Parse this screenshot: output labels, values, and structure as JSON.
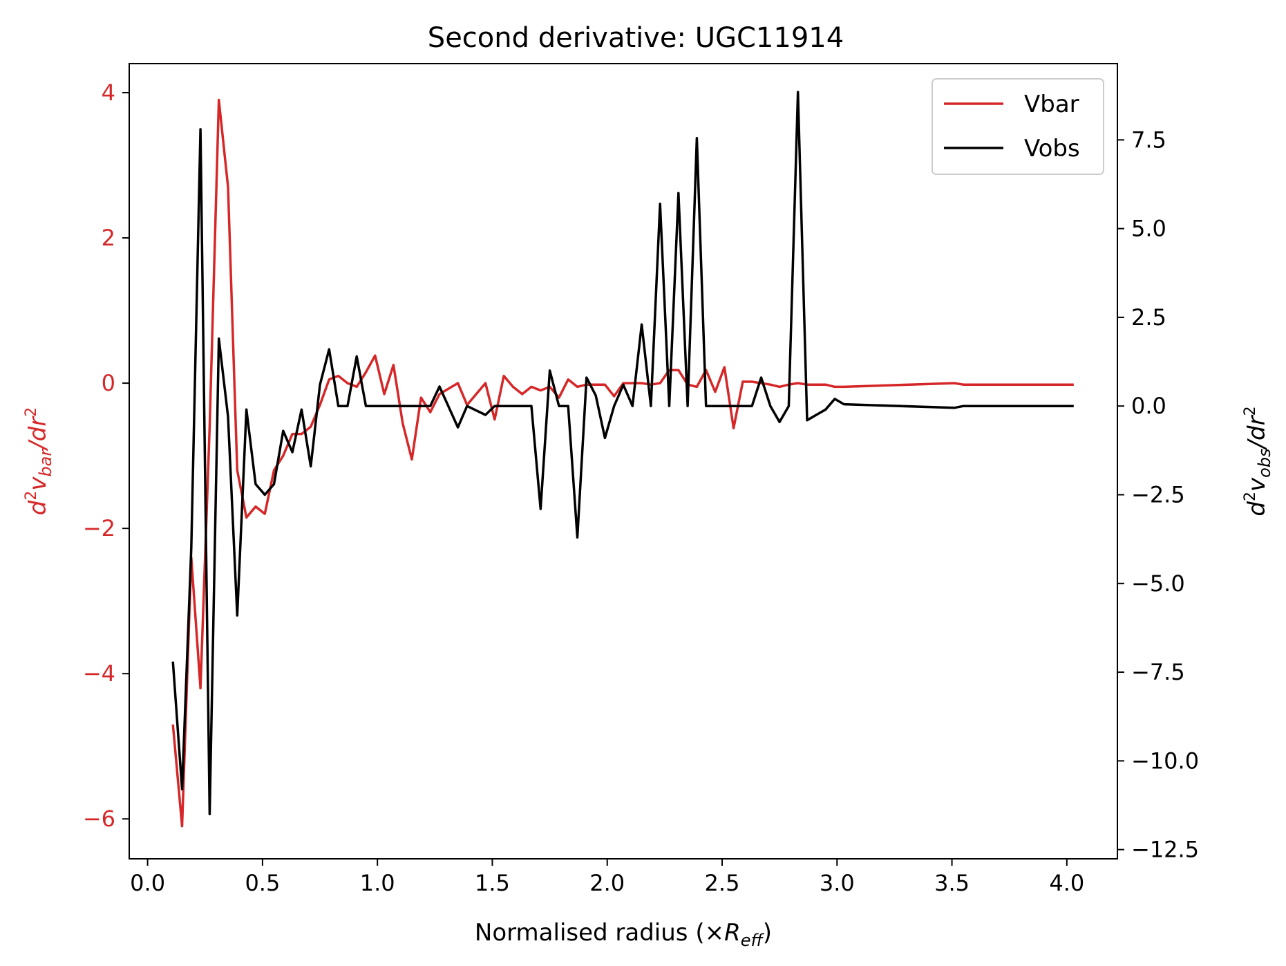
{
  "chart_data": {
    "type": "line",
    "title": "Second derivative: UGC11914",
    "xlabel": "Normalised radius (×R_eff)",
    "ylabel_left": "d²v_bar/dr²",
    "ylabel_right": "d²v_obs/dr²",
    "xlim": [
      -0.08,
      4.22
    ],
    "ylim_left": [
      -6.55,
      4.4
    ],
    "ylim_right": [
      -12.76,
      9.65
    ],
    "x_ticks": [
      "0.0",
      "0.5",
      "1.0",
      "1.5",
      "2.0",
      "2.5",
      "3.0",
      "3.5",
      "4.0"
    ],
    "y_ticks_left": [
      "−6",
      "−4",
      "−2",
      "0",
      "2",
      "4"
    ],
    "y_ticks_right": [
      "−12.5",
      "−10.0",
      "−7.5",
      "−5.0",
      "−2.5",
      "0.0",
      "2.5",
      "5.0",
      "7.5"
    ],
    "legend_position": "top-right",
    "grid": false,
    "colors": {
      "vbar": "#d62728",
      "vobs": "#000000",
      "left_axis": "#d62728",
      "right_axis": "#000000"
    },
    "series": [
      {
        "name": "Vbar",
        "axis": "left",
        "x": [
          0.11,
          0.15,
          0.19,
          0.23,
          0.27,
          0.31,
          0.35,
          0.39,
          0.43,
          0.47,
          0.51,
          0.55,
          0.59,
          0.63,
          0.67,
          0.71,
          0.75,
          0.79,
          0.83,
          0.87,
          0.91,
          0.95,
          0.99,
          1.03,
          1.07,
          1.11,
          1.15,
          1.19,
          1.23,
          1.27,
          1.35,
          1.39,
          1.47,
          1.51,
          1.55,
          1.59,
          1.63,
          1.67,
          1.71,
          1.75,
          1.79,
          1.83,
          1.87,
          1.91,
          1.95,
          1.99,
          2.03,
          2.07,
          2.11,
          2.15,
          2.19,
          2.23,
          2.27,
          2.31,
          2.35,
          2.39,
          2.43,
          2.47,
          2.51,
          2.55,
          2.59,
          2.63,
          2.67,
          2.71,
          2.75,
          2.79,
          2.83,
          2.87,
          2.91,
          2.95,
          2.99,
          3.03,
          3.51,
          3.55,
          4.03
        ],
        "y": [
          -4.7,
          -6.1,
          -2.4,
          -4.2,
          -0.6,
          3.9,
          2.7,
          -1.2,
          -1.85,
          -1.7,
          -1.8,
          -1.2,
          -1.0,
          -0.7,
          -0.7,
          -0.6,
          -0.3,
          0.05,
          0.1,
          0.0,
          -0.05,
          0.15,
          0.38,
          -0.15,
          0.25,
          -0.55,
          -1.05,
          -0.2,
          -0.4,
          -0.15,
          0.0,
          -0.3,
          0.0,
          -0.5,
          0.1,
          -0.05,
          -0.15,
          -0.05,
          -0.1,
          -0.05,
          -0.2,
          0.05,
          -0.05,
          -0.02,
          -0.02,
          -0.02,
          -0.18,
          0.0,
          0.0,
          0.0,
          -0.02,
          0.0,
          0.18,
          0.18,
          -0.02,
          -0.05,
          0.18,
          -0.12,
          0.22,
          -0.62,
          0.02,
          0.02,
          0.0,
          -0.02,
          -0.05,
          -0.02,
          0.0,
          -0.02,
          -0.02,
          -0.02,
          -0.05,
          -0.05,
          0.0,
          -0.02,
          -0.02
        ]
      },
      {
        "name": "Vobs",
        "axis": "right",
        "x": [
          0.11,
          0.15,
          0.19,
          0.23,
          0.27,
          0.31,
          0.35,
          0.39,
          0.43,
          0.47,
          0.51,
          0.55,
          0.59,
          0.63,
          0.67,
          0.71,
          0.75,
          0.79,
          0.83,
          0.87,
          0.91,
          0.95,
          0.99,
          1.03,
          1.07,
          1.11,
          1.15,
          1.19,
          1.23,
          1.27,
          1.35,
          1.39,
          1.47,
          1.51,
          1.55,
          1.59,
          1.63,
          1.67,
          1.71,
          1.75,
          1.79,
          1.83,
          1.87,
          1.91,
          1.95,
          1.99,
          2.03,
          2.07,
          2.11,
          2.15,
          2.19,
          2.23,
          2.27,
          2.31,
          2.35,
          2.39,
          2.43,
          2.47,
          2.51,
          2.55,
          2.59,
          2.63,
          2.67,
          2.71,
          2.75,
          2.79,
          2.83,
          2.87,
          2.91,
          2.95,
          2.99,
          3.03,
          3.51,
          3.55,
          4.03
        ],
        "y": [
          -7.2,
          -10.8,
          -4.0,
          7.8,
          -11.5,
          1.9,
          -0.3,
          -5.9,
          -0.1,
          -2.2,
          -2.5,
          -2.2,
          -0.7,
          -1.3,
          -0.1,
          -1.7,
          0.6,
          1.6,
          0.0,
          0.0,
          1.4,
          0.0,
          0.0,
          0.0,
          0.0,
          0.0,
          0.0,
          0.0,
          0.0,
          0.55,
          -0.6,
          0.0,
          -0.25,
          0.0,
          0.0,
          0.0,
          0.0,
          0.0,
          -2.9,
          1.0,
          0.0,
          0.0,
          -3.7,
          0.8,
          0.3,
          -0.9,
          0.0,
          0.6,
          0.0,
          2.3,
          0.0,
          5.7,
          0.0,
          6.0,
          0.0,
          7.55,
          0.0,
          0.0,
          0.0,
          0.0,
          0.0,
          0.0,
          0.8,
          0.0,
          -0.45,
          0.0,
          8.85,
          -0.4,
          -0.25,
          -0.1,
          0.2,
          0.05,
          -0.05,
          0.0,
          0.0
        ]
      }
    ]
  }
}
